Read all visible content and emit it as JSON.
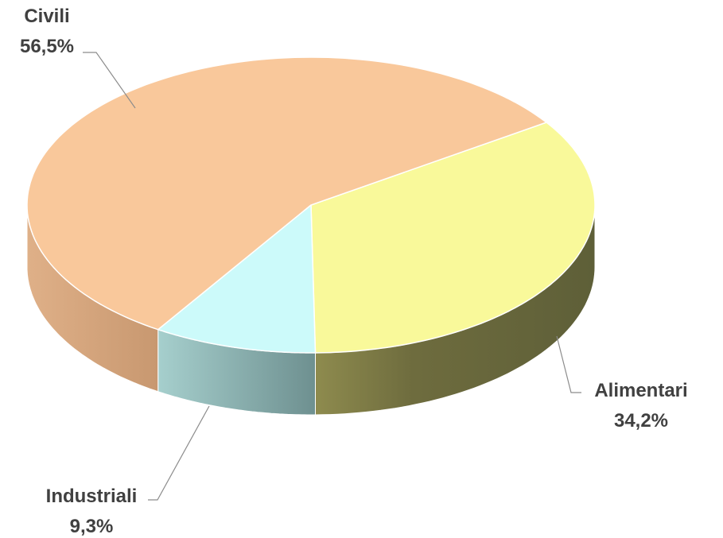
{
  "chart_data": {
    "type": "pie",
    "style": "3d",
    "categories": [
      "Civili",
      "Alimentari",
      "Industriali"
    ],
    "values": [
      56.5,
      34.2,
      9.3
    ],
    "data_labels": [
      "56,5%",
      "34,2%",
      "9,3%"
    ],
    "colors": {
      "Civili": "#F9C89B",
      "Alimentari": "#F9F99A",
      "Industriali": "#CCFAFA"
    },
    "legend": "none",
    "title": ""
  }
}
